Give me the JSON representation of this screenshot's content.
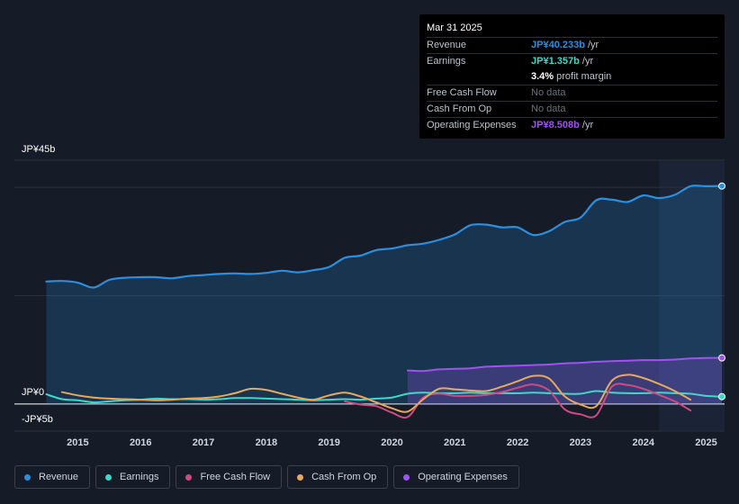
{
  "tooltip": {
    "date": "Mar 31 2025",
    "rows": [
      {
        "label": "Revenue",
        "value": "JP¥40.233b",
        "unit": "/yr",
        "color": "#2b8fe0"
      },
      {
        "label": "Earnings",
        "value": "JP¥1.357b",
        "unit": "/yr",
        "color": "#3fd8c8"
      },
      {
        "label": "",
        "value": "3.4%",
        "unit": "profit margin",
        "color": "#ffffff"
      },
      {
        "label": "Free Cash Flow",
        "nodata": "No data"
      },
      {
        "label": "Cash From Op",
        "nodata": "No data"
      },
      {
        "label": "Operating Expenses",
        "value": "JP¥8.508b",
        "unit": "/yr",
        "color": "#a052f0"
      }
    ]
  },
  "legend": [
    {
      "label": "Revenue",
      "color": "#2b8fe0"
    },
    {
      "label": "Earnings",
      "color": "#3fd8c8"
    },
    {
      "label": "Free Cash Flow",
      "color": "#d04a7f"
    },
    {
      "label": "Cash From Op",
      "color": "#e8a95e"
    },
    {
      "label": "Operating Expenses",
      "color": "#a052f0"
    }
  ],
  "chart_data": {
    "type": "line",
    "title": "",
    "xlabel": "",
    "ylabel": "",
    "unit": "JP¥ billions",
    "y_axis_labels": {
      "top": "JP¥45b",
      "zero": "JP¥0",
      "bottom": "-JP¥5b"
    },
    "ylim": [
      -5,
      45
    ],
    "xlim": [
      2014.45,
      2025.25
    ],
    "x_ticks": [
      "2015",
      "2016",
      "2017",
      "2018",
      "2019",
      "2020",
      "2021",
      "2022",
      "2023",
      "2024",
      "2025"
    ],
    "forecast_start": 2024.25,
    "series": [
      {
        "name": "Revenue",
        "color": "#2b8fe0",
        "fill": true,
        "points": [
          [
            2014.5,
            22.6
          ],
          [
            2014.75,
            22.7
          ],
          [
            2015.0,
            22.4
          ],
          [
            2015.25,
            21.5
          ],
          [
            2015.5,
            22.9
          ],
          [
            2015.75,
            23.3
          ],
          [
            2016.0,
            23.4
          ],
          [
            2016.25,
            23.4
          ],
          [
            2016.5,
            23.2
          ],
          [
            2016.75,
            23.6
          ],
          [
            2017.0,
            23.8
          ],
          [
            2017.25,
            24.0
          ],
          [
            2017.5,
            24.1
          ],
          [
            2017.75,
            24.0
          ],
          [
            2018.0,
            24.2
          ],
          [
            2018.25,
            24.6
          ],
          [
            2018.5,
            24.3
          ],
          [
            2018.75,
            24.7
          ],
          [
            2019.0,
            25.3
          ],
          [
            2019.25,
            27.0
          ],
          [
            2019.5,
            27.4
          ],
          [
            2019.75,
            28.4
          ],
          [
            2020.0,
            28.7
          ],
          [
            2020.25,
            29.3
          ],
          [
            2020.5,
            29.6
          ],
          [
            2020.75,
            30.3
          ],
          [
            2021.0,
            31.3
          ],
          [
            2021.25,
            33.0
          ],
          [
            2021.5,
            33.1
          ],
          [
            2021.75,
            32.6
          ],
          [
            2022.0,
            32.6
          ],
          [
            2022.25,
            31.2
          ],
          [
            2022.5,
            31.9
          ],
          [
            2022.75,
            33.6
          ],
          [
            2023.0,
            34.4
          ],
          [
            2023.25,
            37.6
          ],
          [
            2023.5,
            37.7
          ],
          [
            2023.75,
            37.3
          ],
          [
            2024.0,
            38.5
          ],
          [
            2024.25,
            38.0
          ],
          [
            2024.5,
            38.6
          ],
          [
            2024.75,
            40.2
          ],
          [
            2025.0,
            40.2
          ],
          [
            2025.25,
            40.233
          ]
        ]
      },
      {
        "name": "Earnings",
        "color": "#3fd8c8",
        "fill": false,
        "points": [
          [
            2014.5,
            1.8
          ],
          [
            2014.75,
            0.9
          ],
          [
            2015.0,
            0.7
          ],
          [
            2015.25,
            0.3
          ],
          [
            2015.5,
            0.5
          ],
          [
            2015.75,
            0.7
          ],
          [
            2016.0,
            0.8
          ],
          [
            2016.25,
            1.0
          ],
          [
            2016.5,
            0.9
          ],
          [
            2016.75,
            0.9
          ],
          [
            2017.0,
            0.8
          ],
          [
            2017.25,
            0.9
          ],
          [
            2017.5,
            1.1
          ],
          [
            2017.75,
            1.1
          ],
          [
            2018.0,
            1.0
          ],
          [
            2018.25,
            0.9
          ],
          [
            2018.5,
            0.8
          ],
          [
            2018.75,
            0.7
          ],
          [
            2019.0,
            0.8
          ],
          [
            2019.25,
            0.9
          ],
          [
            2019.5,
            0.8
          ],
          [
            2019.75,
            1.0
          ],
          [
            2020.0,
            1.2
          ],
          [
            2020.25,
            1.9
          ],
          [
            2020.5,
            2.1
          ],
          [
            2020.75,
            2.0
          ],
          [
            2021.0,
            2.0
          ],
          [
            2021.25,
            2.1
          ],
          [
            2021.5,
            2.0
          ],
          [
            2021.75,
            2.0
          ],
          [
            2022.0,
            2.0
          ],
          [
            2022.25,
            2.1
          ],
          [
            2022.5,
            2.0
          ],
          [
            2022.75,
            1.9
          ],
          [
            2023.0,
            1.9
          ],
          [
            2023.25,
            2.4
          ],
          [
            2023.5,
            2.1
          ],
          [
            2023.75,
            2.0
          ],
          [
            2024.0,
            2.0
          ],
          [
            2024.25,
            2.1
          ],
          [
            2024.5,
            2.0
          ],
          [
            2024.75,
            1.9
          ],
          [
            2025.0,
            1.5
          ],
          [
            2025.25,
            1.357
          ]
        ]
      },
      {
        "name": "Free Cash Flow",
        "color": "#d04a7f",
        "fill": false,
        "points": [
          [
            2019.25,
            0.5
          ],
          [
            2019.5,
            -0.1
          ],
          [
            2019.75,
            -0.4
          ],
          [
            2020.0,
            -1.6
          ],
          [
            2020.25,
            -2.4
          ],
          [
            2020.5,
            1.2
          ],
          [
            2020.75,
            1.9
          ],
          [
            2021.0,
            1.5
          ],
          [
            2021.25,
            1.5
          ],
          [
            2021.5,
            1.7
          ],
          [
            2021.75,
            2.2
          ],
          [
            2022.0,
            3.0
          ],
          [
            2022.25,
            3.6
          ],
          [
            2022.5,
            2.5
          ],
          [
            2022.75,
            -1.0
          ],
          [
            2023.0,
            -1.9
          ],
          [
            2023.25,
            -2.1
          ],
          [
            2023.5,
            3.2
          ],
          [
            2023.75,
            3.5
          ],
          [
            2024.0,
            2.8
          ],
          [
            2024.25,
            1.7
          ],
          [
            2024.5,
            0.5
          ],
          [
            2024.75,
            -1.2
          ]
        ]
      },
      {
        "name": "Cash From Op",
        "color": "#e8a95e",
        "fill": false,
        "points": [
          [
            2014.75,
            2.2
          ],
          [
            2015.0,
            1.6
          ],
          [
            2015.25,
            1.2
          ],
          [
            2015.5,
            1.0
          ],
          [
            2015.75,
            0.9
          ],
          [
            2016.0,
            0.8
          ],
          [
            2016.25,
            0.7
          ],
          [
            2016.5,
            0.8
          ],
          [
            2016.75,
            1.0
          ],
          [
            2017.0,
            1.1
          ],
          [
            2017.25,
            1.4
          ],
          [
            2017.5,
            2.0
          ],
          [
            2017.75,
            2.8
          ],
          [
            2018.0,
            2.6
          ],
          [
            2018.25,
            1.9
          ],
          [
            2018.5,
            1.2
          ],
          [
            2018.75,
            0.8
          ],
          [
            2019.0,
            1.6
          ],
          [
            2019.25,
            2.1
          ],
          [
            2019.5,
            1.4
          ],
          [
            2019.75,
            0.3
          ],
          [
            2020.0,
            -0.8
          ],
          [
            2020.25,
            -1.4
          ],
          [
            2020.5,
            0.9
          ],
          [
            2020.75,
            2.8
          ],
          [
            2021.0,
            2.7
          ],
          [
            2021.25,
            2.5
          ],
          [
            2021.5,
            2.4
          ],
          [
            2021.75,
            3.2
          ],
          [
            2022.0,
            4.2
          ],
          [
            2022.25,
            5.2
          ],
          [
            2022.5,
            4.7
          ],
          [
            2022.75,
            1.4
          ],
          [
            2023.0,
            -0.1
          ],
          [
            2023.25,
            -0.4
          ],
          [
            2023.5,
            4.3
          ],
          [
            2023.75,
            5.4
          ],
          [
            2024.0,
            4.8
          ],
          [
            2024.25,
            3.7
          ],
          [
            2024.5,
            2.4
          ],
          [
            2024.75,
            0.8
          ]
        ]
      },
      {
        "name": "Operating Expenses",
        "color": "#a052f0",
        "fill": true,
        "points": [
          [
            2020.25,
            6.2
          ],
          [
            2020.5,
            6.1
          ],
          [
            2020.75,
            6.4
          ],
          [
            2021.0,
            6.5
          ],
          [
            2021.25,
            6.6
          ],
          [
            2021.5,
            6.9
          ],
          [
            2021.75,
            7.0
          ],
          [
            2022.0,
            7.1
          ],
          [
            2022.25,
            7.2
          ],
          [
            2022.5,
            7.3
          ],
          [
            2022.75,
            7.5
          ],
          [
            2023.0,
            7.6
          ],
          [
            2023.25,
            7.8
          ],
          [
            2023.5,
            7.9
          ],
          [
            2023.75,
            8.0
          ],
          [
            2024.0,
            8.1
          ],
          [
            2024.25,
            8.1
          ],
          [
            2024.5,
            8.2
          ],
          [
            2024.75,
            8.4
          ],
          [
            2025.0,
            8.5
          ],
          [
            2025.25,
            8.508
          ]
        ]
      }
    ]
  }
}
